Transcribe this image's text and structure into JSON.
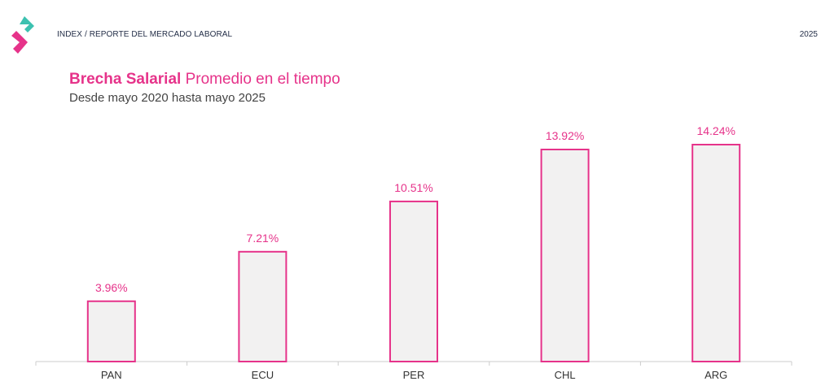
{
  "header": {
    "title": "INDEX / REPORTE DEL MERCADO LABORAL",
    "year": "2025"
  },
  "colors": {
    "accent": "#e6338a",
    "bar_fill": "#f2f1f1",
    "logo_teal": "#3cc1b0",
    "logo_pink": "#e6338a"
  },
  "chart_data": {
    "type": "bar",
    "title_bold": "Brecha Salarial",
    "title_rest": " Promedio en el tiempo",
    "subtitle": "Desde mayo 2020 hasta mayo 2025",
    "categories": [
      "PAN",
      "ECU",
      "PER",
      "CHL",
      "ARG"
    ],
    "values": [
      3.96,
      7.21,
      10.51,
      13.92,
      14.24
    ],
    "value_labels": [
      "3.96%",
      "7.21%",
      "10.51%",
      "13.92%",
      "14.24%"
    ],
    "ylim": [
      0,
      16
    ],
    "grid": false
  }
}
